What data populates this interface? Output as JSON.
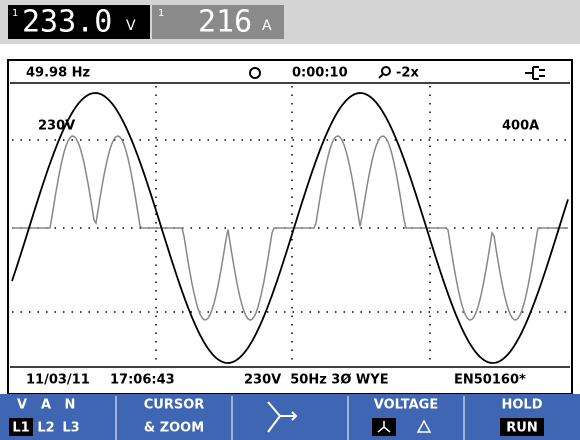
{
  "readings": [
    {
      "channel": "1",
      "value": "233.0",
      "unit": "V"
    },
    {
      "channel": "1",
      "value": "216",
      "unit": "A"
    }
  ],
  "status": {
    "frequency": "49.98 Hz",
    "timer": "0:00:10",
    "zoom": "-2x"
  },
  "scale": {
    "voltage": "230V",
    "current": "400A"
  },
  "footer": {
    "date": "11/03/11",
    "time": "17:06:43",
    "settings": "230V  50Hz 3Ø WYE",
    "standard": "EN50160*"
  },
  "softkeys": {
    "phase_top": [
      "V",
      "A",
      "N"
    ],
    "phase_bottom": [
      "L1",
      "L2",
      "L3"
    ],
    "cursor": [
      "CURSOR",
      "& ZOOM"
    ],
    "voltage": "VOLTAGE",
    "hold": "HOLD",
    "run": "RUN"
  }
}
